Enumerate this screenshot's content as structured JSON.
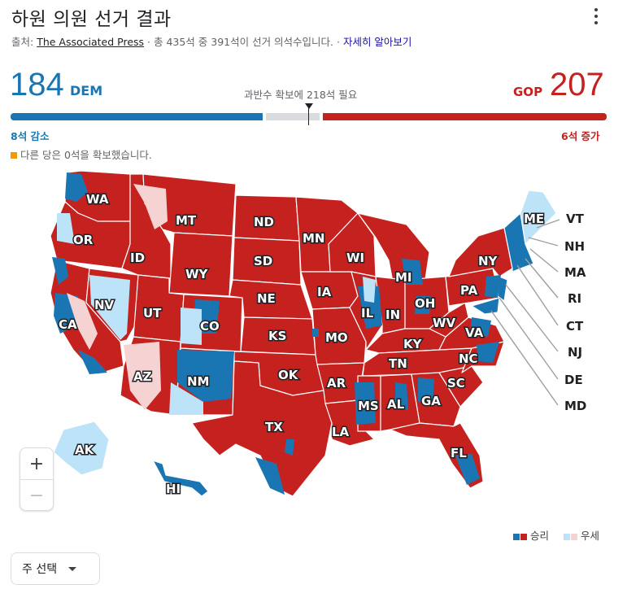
{
  "header": {
    "title": "하원 의원 선거 결과",
    "source_prefix": "출처: ",
    "source_publisher": "The Associated Press",
    "source_suffix": " · 총 435석 중 391석이 선거 의석수입니다. · ",
    "more_link": "자세히 알아보기"
  },
  "scoreboard": {
    "dem_count": "184",
    "dem_label": "DEM",
    "gop_label": "GOP",
    "gop_count": "207",
    "majority_text": "과반수 확보에 218석 필요",
    "dem_change": "8석 감소",
    "gop_change": "6석 증가",
    "other_text": "다른 당은 0석을 확보했습니다.",
    "total_seats": 435,
    "dem_seats": 184,
    "gop_seats": 207,
    "majority_seats": 218
  },
  "colors": {
    "dem": "#1a76b3",
    "dem_lean": "#bde3f8",
    "gop": "#c5221f",
    "gop_lean": "#f6d3d3",
    "other": "#f29900"
  },
  "map": {
    "states": [
      "WA",
      "OR",
      "CA",
      "NV",
      "ID",
      "MT",
      "WY",
      "UT",
      "AZ",
      "CO",
      "NM",
      "ND",
      "SD",
      "NE",
      "KS",
      "OK",
      "TX",
      "MN",
      "IA",
      "MO",
      "AR",
      "LA",
      "WI",
      "IL",
      "MS",
      "MI",
      "IN",
      "KY",
      "TN",
      "AL",
      "GA",
      "OH",
      "WV",
      "VA",
      "NC",
      "SC",
      "FL",
      "PA",
      "NY",
      "ME",
      "AK",
      "HI"
    ],
    "callouts": [
      "VT",
      "NH",
      "MA",
      "RI",
      "CT",
      "NJ",
      "DE",
      "MD"
    ]
  },
  "zoom": {
    "in": "+",
    "out": "−"
  },
  "legend": {
    "win": "승리",
    "lean": "우세"
  },
  "selector": {
    "label": "주 선택"
  }
}
